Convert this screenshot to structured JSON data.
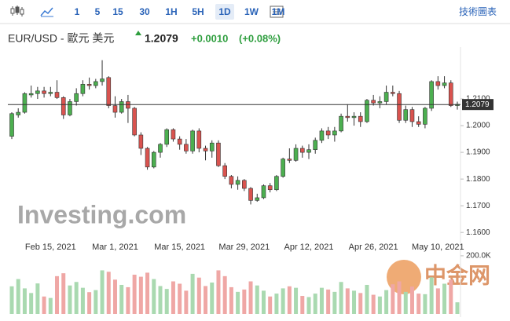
{
  "toolbar": {
    "intervals": [
      "1",
      "5",
      "15",
      "30",
      "1H",
      "5H",
      "1D",
      "1W",
      "1M"
    ],
    "active": "1D",
    "menu": "技術圖表"
  },
  "chart_data": {
    "type": "candlestick",
    "title": "EUR/USD - 歐元 美元",
    "price": "1.2079",
    "change": "+0.0010",
    "change_pct": "(+0.08%)",
    "watermark": "Investing.com",
    "watermark2": "中金网",
    "categories": [
      null,
      null,
      null,
      null,
      null,
      null,
      "Feb 15, 2021",
      null,
      null,
      null,
      null,
      null,
      null,
      null,
      null,
      null,
      "Mar 1, 2021",
      null,
      null,
      null,
      null,
      null,
      null,
      null,
      null,
      null,
      "Mar 15, 2021",
      null,
      null,
      null,
      null,
      null,
      null,
      null,
      null,
      null,
      "Mar 29, 2021",
      null,
      null,
      null,
      null,
      null,
      null,
      null,
      null,
      null,
      "Apr 12, 2021",
      null,
      null,
      null,
      null,
      null,
      null,
      null,
      null,
      null,
      "Apr 26, 2021",
      null,
      null,
      null,
      null,
      null,
      null,
      null,
      null,
      null,
      "May 10, 2021",
      null,
      null,
      null
    ],
    "open": [
      1.196,
      1.204,
      1.205,
      1.2115,
      1.212,
      1.213,
      1.212,
      1.2125,
      1.2105,
      1.204,
      1.209,
      1.212,
      1.2155,
      1.215,
      1.2165,
      1.218,
      1.2075,
      1.205,
      1.209,
      1.2065,
      1.1965,
      1.1915,
      1.1845,
      1.19,
      1.193,
      1.1985,
      1.195,
      1.193,
      1.1905,
      1.198,
      1.1915,
      1.1905,
      1.1935,
      1.185,
      1.181,
      1.178,
      1.1795,
      1.1765,
      1.172,
      1.173,
      1.1775,
      1.176,
      1.181,
      1.1875,
      1.187,
      1.1915,
      1.19,
      1.191,
      1.1945,
      1.198,
      1.1965,
      1.198,
      1.2035,
      1.203,
      1.2035,
      1.2015,
      1.2095,
      1.2085,
      1.209,
      1.2125,
      1.212,
      1.202,
      1.206,
      1.2015,
      1.2005,
      1.2065,
      1.2165,
      1.215,
      1.216,
      1.2075
    ],
    "high": [
      1.205,
      1.2065,
      1.2125,
      1.215,
      1.2145,
      1.2145,
      1.2145,
      1.217,
      1.211,
      1.21,
      1.214,
      1.217,
      1.218,
      1.2175,
      1.2245,
      1.2185,
      1.211,
      1.21,
      1.2115,
      1.207,
      1.1975,
      1.192,
      1.1905,
      1.1935,
      1.199,
      1.199,
      1.196,
      1.195,
      1.1985,
      1.199,
      1.1925,
      1.1945,
      1.1945,
      1.186,
      1.1815,
      1.181,
      1.18,
      1.177,
      1.1745,
      1.178,
      1.1785,
      1.1815,
      1.188,
      1.1915,
      1.193,
      1.1925,
      1.193,
      1.1955,
      1.199,
      1.1995,
      1.1995,
      1.2045,
      1.208,
      1.205,
      1.205,
      1.21,
      1.2115,
      1.211,
      1.215,
      1.215,
      1.213,
      1.2075,
      1.207,
      1.2035,
      1.207,
      1.217,
      1.2185,
      1.2185,
      1.217,
      1.209
    ],
    "low": [
      1.195,
      1.203,
      1.2045,
      1.2105,
      1.21,
      1.2105,
      1.211,
      1.21,
      1.2025,
      1.2035,
      1.2075,
      1.211,
      1.2135,
      1.214,
      1.215,
      1.2065,
      1.203,
      1.2045,
      1.201,
      1.196,
      1.189,
      1.1835,
      1.184,
      1.188,
      1.192,
      1.194,
      1.191,
      1.1895,
      1.1895,
      1.19,
      1.187,
      1.188,
      1.1845,
      1.18,
      1.1765,
      1.176,
      1.1755,
      1.1705,
      1.1715,
      1.1725,
      1.175,
      1.1755,
      1.1805,
      1.186,
      1.1865,
      1.188,
      1.1875,
      1.1895,
      1.1935,
      1.195,
      1.194,
      1.1975,
      1.2015,
      1.2,
      1.1995,
      1.201,
      1.2075,
      1.2065,
      1.208,
      1.211,
      1.201,
      1.201,
      1.1995,
      1.1995,
      1.199,
      1.2055,
      1.2135,
      1.214,
      1.207,
      1.206
    ],
    "close": [
      1.2045,
      1.205,
      1.212,
      1.212,
      1.213,
      1.212,
      1.2125,
      1.2105,
      1.204,
      1.209,
      1.212,
      1.2155,
      1.215,
      1.2165,
      1.2175,
      1.2075,
      1.205,
      1.209,
      1.2065,
      1.1965,
      1.1915,
      1.1845,
      1.19,
      1.193,
      1.1985,
      1.195,
      1.193,
      1.1905,
      1.198,
      1.1915,
      1.1905,
      1.1935,
      1.185,
      1.181,
      1.178,
      1.1795,
      1.1765,
      1.172,
      1.173,
      1.1775,
      1.176,
      1.181,
      1.1875,
      1.187,
      1.1915,
      1.19,
      1.191,
      1.1945,
      1.198,
      1.1965,
      1.198,
      1.2035,
      1.203,
      1.2035,
      1.2015,
      1.2095,
      1.2085,
      1.209,
      1.2125,
      1.212,
      1.202,
      1.206,
      1.2015,
      1.2005,
      1.2065,
      1.2165,
      1.215,
      1.216,
      1.2075,
      1.208
    ],
    "volume": [
      95000,
      120000,
      88000,
      72000,
      105000,
      60000,
      55000,
      130000,
      140000,
      98000,
      110000,
      90000,
      75000,
      82000,
      150000,
      145000,
      118000,
      100000,
      92000,
      135000,
      128000,
      142000,
      120000,
      96000,
      86000,
      112000,
      104000,
      80000,
      138000,
      125000,
      96000,
      108000,
      150000,
      130000,
      92000,
      76000,
      84000,
      112000,
      98000,
      80000,
      60000,
      70000,
      88000,
      95000,
      90000,
      62000,
      58000,
      70000,
      90000,
      84000,
      76000,
      110000,
      88000,
      80000,
      72000,
      100000,
      66000,
      60000,
      82000,
      102000,
      112000,
      76000,
      94000,
      70000,
      68000,
      126000,
      88000,
      104000,
      118000,
      40000
    ],
    "up_color": "#4caf50",
    "down_color": "#d9534f",
    "up_volume_color": "#a9d9b0",
    "down_volume_color": "#efa7a5",
    "ylim": [
      1.153,
      1.225
    ],
    "yticks": [
      {
        "value": 1.16,
        "label": "1.1600"
      },
      {
        "value": 1.17,
        "label": "1.1700"
      },
      {
        "value": 1.18,
        "label": "1.1800"
      },
      {
        "value": 1.19,
        "label": "1.1900"
      },
      {
        "value": 1.2,
        "label": "1.2000"
      },
      {
        "value": 1.21,
        "label": "1.2100"
      }
    ],
    "last_price": 1.2079,
    "volume_ylim": [
      0,
      216000
    ],
    "volume_yticks": [
      {
        "value": 200000,
        "label": "200.0K"
      }
    ]
  }
}
